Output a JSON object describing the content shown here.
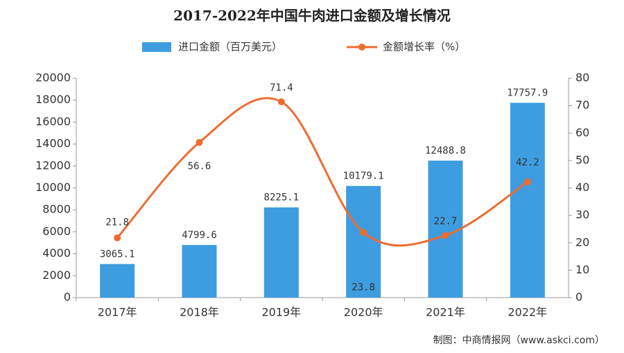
{
  "chart_data": {
    "type": "combo",
    "title": "2017-2022年中国牛肉进口金额及增长情况",
    "categories": [
      "2017年",
      "2018年",
      "2019年",
      "2020年",
      "2021年",
      "2022年"
    ],
    "series": [
      {
        "name": "进口金额（百万美元）",
        "type": "bar",
        "color": "#3d9de0",
        "values": [
          3065.1,
          4799.6,
          8225.1,
          10179.1,
          12488.8,
          17757.9
        ]
      },
      {
        "name": "金额增长率（%）",
        "type": "line",
        "axis": "y2",
        "color": "#ef6c2f",
        "values": [
          21.8,
          56.6,
          71.4,
          23.8,
          22.7,
          42.2
        ]
      }
    ],
    "ylim": [
      0,
      20000
    ],
    "yticks": [
      0,
      2000,
      4000,
      6000,
      8000,
      10000,
      12000,
      14000,
      16000,
      18000,
      20000
    ],
    "y2lim": [
      0,
      80
    ],
    "y2ticks": [
      0,
      10,
      20,
      30,
      40,
      50,
      60,
      70,
      80
    ],
    "source": "制图：中商情报网（www.askci.com）"
  }
}
